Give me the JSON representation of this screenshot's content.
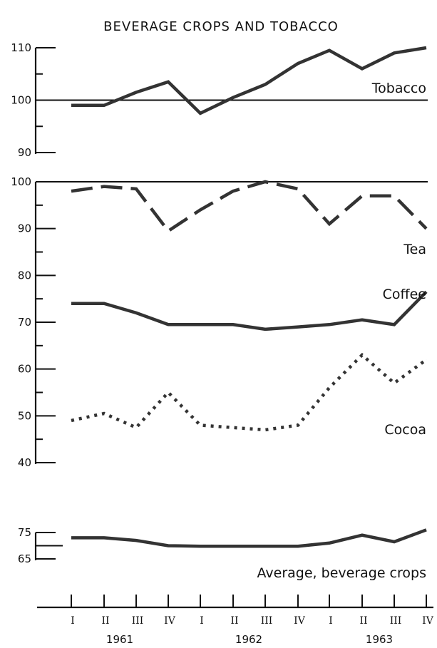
{
  "chart_data": {
    "type": "line",
    "title": "BEVERAGE CROPS AND TOBACCO",
    "x": [
      "I",
      "II",
      "III",
      "IV",
      "I",
      "II",
      "III",
      "IV",
      "I",
      "II",
      "III",
      "IV"
    ],
    "years": [
      "1961",
      "1962",
      "1963"
    ],
    "panels": [
      {
        "name": "tobacco-panel",
        "ylim": [
          90,
          110
        ],
        "yticks": [
          "110",
          "100",
          "90"
        ],
        "reference_line": 100,
        "series": [
          {
            "name": "Tobacco",
            "style": "solid",
            "values": [
              99,
              99,
              101.5,
              103.5,
              97.5,
              100.5,
              103,
              107,
              109.5,
              106,
              109,
              110
            ]
          }
        ]
      },
      {
        "name": "crops-panel",
        "ylim": [
          40,
          100
        ],
        "yticks": [
          "100",
          "90",
          "80",
          "70",
          "60",
          "50",
          "40"
        ],
        "reference_line": 100,
        "series": [
          {
            "name": "Tea",
            "style": "dashed",
            "values": [
              98,
              99,
              98.5,
              89.5,
              94,
              98,
              100,
              98.5,
              91,
              97,
              97,
              90
            ]
          },
          {
            "name": "Coffee",
            "style": "solid",
            "values": [
              74,
              74,
              72,
              69.5,
              69.5,
              69.5,
              68.5,
              69,
              69.5,
              70.5,
              69.5,
              76.5
            ]
          },
          {
            "name": "Cocoa",
            "style": "dotted",
            "values": [
              49,
              50.5,
              47.5,
              55,
              48,
              47.5,
              47,
              48,
              56,
              63,
              57,
              62
            ]
          }
        ]
      },
      {
        "name": "average-panel",
        "ylim": [
          65,
          75
        ],
        "yticks": [
          "75",
          "65"
        ],
        "series": [
          {
            "name": "Average, beverage crops",
            "style": "solid",
            "values": [
              73,
              73,
              72,
              70,
              69.8,
              69.8,
              69.8,
              69.8,
              71,
              74,
              71.5,
              76
            ]
          }
        ]
      }
    ]
  }
}
